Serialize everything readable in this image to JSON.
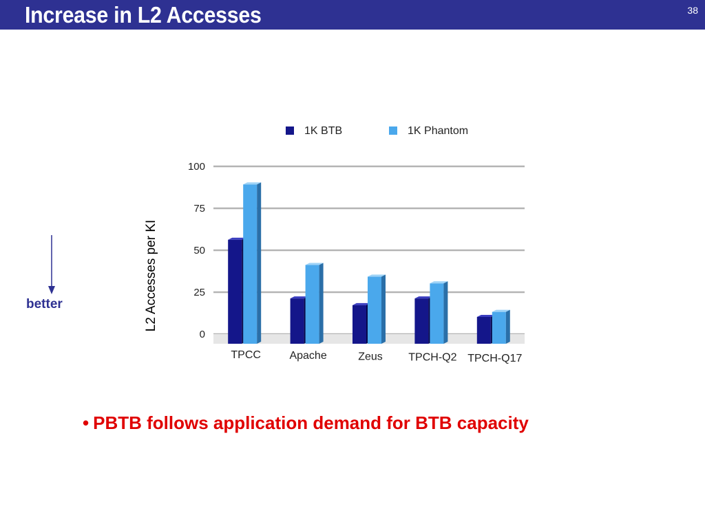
{
  "slide": {
    "title": "Increase in L2 Accesses",
    "number": "38",
    "better_label": "better",
    "bullet": "PBTB follows application demand for BTB capacity"
  },
  "colors": {
    "title_bar": "#2e3192",
    "series_1": "#14168a",
    "series_2": "#4aa8ec",
    "bullet_text": "#e00000"
  },
  "chart_data": {
    "type": "bar",
    "categories": [
      "TPCC",
      "Apache",
      "Zeus",
      "TPCH-Q2",
      "TPCH-Q17"
    ],
    "series": [
      {
        "name": "1K BTB",
        "values": [
          62,
          27,
          23,
          27,
          16
        ]
      },
      {
        "name": "1K Phantom",
        "values": [
          95,
          47,
          40,
          36,
          19
        ]
      }
    ],
    "title": "",
    "xlabel": "",
    "ylabel": "L2 Accesses per KI",
    "ylim": [
      0,
      100
    ],
    "yticks": [
      "0",
      "25",
      "50",
      "75",
      "100"
    ],
    "grid": true,
    "legend": "top"
  }
}
